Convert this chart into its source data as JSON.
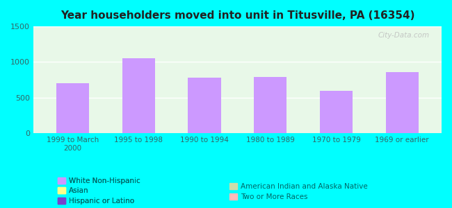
{
  "title": "Year householders moved into unit in Titusville, PA (16354)",
  "categories": [
    "1999 to March\n2000",
    "1995 to 1998",
    "1990 to 1994",
    "1980 to 1989",
    "1970 to 1979",
    "1969 or earlier"
  ],
  "white_non_hispanic": [
    700,
    1050,
    775,
    785,
    590,
    860
  ],
  "ylim": [
    0,
    1500
  ],
  "yticks": [
    0,
    500,
    1000,
    1500
  ],
  "bar_width": 0.5,
  "background_color": "#00FFFF",
  "plot_bg_color": "#e8f8e8",
  "white_color": "#cc99ff",
  "asian_color": "#ffff88",
  "hispanic_color": "#7744cc",
  "american_indian_color": "#ccddaa",
  "two_or_more_color": "#ffbbbb",
  "title_color": "#222222",
  "axis_label_color": "#336666",
  "legend_text_color": "#006666",
  "watermark": "City-Data.com"
}
